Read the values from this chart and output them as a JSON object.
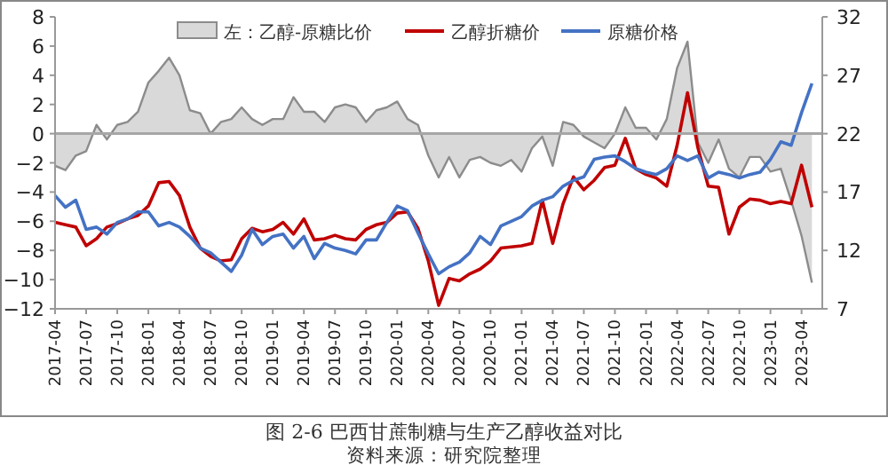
{
  "chart_data": {
    "type": "line",
    "title": "图 2-6 巴西甘蔗制糖与生产乙醇收益对比",
    "annotations": [
      "资料来源：研究院整理"
    ],
    "x": [
      "2017-04",
      "2017-05",
      "2017-06",
      "2017-07",
      "2017-08",
      "2017-09",
      "2017-10",
      "2017-11",
      "2017-12",
      "2018-01",
      "2018-02",
      "2018-03",
      "2018-04",
      "2018-05",
      "2018-06",
      "2018-07",
      "2018-08",
      "2018-09",
      "2018-10",
      "2018-11",
      "2018-12",
      "2019-01",
      "2019-02",
      "2019-03",
      "2019-04",
      "2019-05",
      "2019-06",
      "2019-07",
      "2019-08",
      "2019-09",
      "2019-10",
      "2019-11",
      "2019-12",
      "2020-01",
      "2020-02",
      "2020-03",
      "2020-04",
      "2020-05",
      "2020-06",
      "2020-07",
      "2020-08",
      "2020-09",
      "2020-10",
      "2020-11",
      "2020-12",
      "2021-01",
      "2021-02",
      "2021-03",
      "2021-04",
      "2021-05",
      "2021-06",
      "2021-07",
      "2021-08",
      "2021-09",
      "2021-10",
      "2021-11",
      "2021-12",
      "2022-01",
      "2022-02",
      "2022-03",
      "2022-04",
      "2022-05",
      "2022-06",
      "2022-07",
      "2022-08",
      "2022-09",
      "2022-10",
      "2022-11",
      "2022-12",
      "2023-01",
      "2023-02",
      "2023-03",
      "2023-04",
      "2023-05"
    ],
    "series": [
      {
        "name": "左：乙醇-原糖比价",
        "type": "area",
        "axis": "y",
        "color": "#d9d9d9",
        "values": [
          -2.2,
          -2.5,
          -1.5,
          -1.2,
          0.6,
          -0.4,
          0.6,
          0.8,
          1.5,
          3.5,
          4.3,
          5.2,
          4.0,
          1.6,
          1.4,
          0.0,
          0.8,
          1.0,
          1.8,
          1.0,
          0.6,
          1.0,
          1.0,
          2.5,
          1.5,
          1.5,
          0.8,
          1.8,
          2.0,
          1.8,
          0.8,
          1.6,
          1.8,
          2.2,
          1.0,
          0.6,
          -1.5,
          -3.0,
          -1.6,
          -3.0,
          -1.8,
          -1.6,
          -2.0,
          -2.2,
          -1.8,
          -2.6,
          -1.0,
          -0.2,
          -2.2,
          0.8,
          0.6,
          -0.2,
          -0.6,
          -1.0,
          0.0,
          1.8,
          0.4,
          0.4,
          -0.4,
          1.0,
          4.5,
          6.3,
          -0.6,
          -2.0,
          -0.4,
          -2.4,
          -3.0,
          -1.6,
          -1.6,
          -2.6,
          -2.4,
          -4.6,
          -7.0,
          -10.2
        ]
      },
      {
        "name": "乙醇折糖价",
        "axis": "y2",
        "color": "#c00000",
        "values": [
          14.4,
          14.2,
          14.0,
          12.4,
          13.0,
          14.0,
          14.3,
          14.7,
          15.0,
          15.8,
          17.8,
          17.9,
          16.7,
          14.0,
          12.2,
          11.5,
          11.1,
          11.2,
          13.0,
          13.9,
          13.6,
          13.8,
          14.4,
          13.4,
          14.7,
          12.9,
          13.0,
          13.3,
          13.0,
          12.9,
          13.8,
          14.2,
          14.4,
          15.2,
          15.3,
          13.9,
          11.1,
          7.3,
          9.6,
          9.4,
          10.0,
          10.4,
          11.1,
          12.2,
          12.3,
          12.4,
          12.6,
          16.3,
          12.6,
          16.0,
          18.3,
          17.2,
          18.0,
          19.1,
          19.3,
          21.6,
          19.0,
          18.5,
          18.2,
          17.5,
          21.0,
          25.5,
          20.8,
          17.5,
          17.4,
          13.4,
          15.7,
          16.4,
          16.3,
          16.0,
          16.2,
          16.0,
          19.3,
          15.7
        ]
      },
      {
        "name": "原糖价格",
        "axis": "y2",
        "color": "#4472c4",
        "values": [
          16.7,
          15.7,
          16.3,
          13.8,
          14.0,
          13.4,
          14.4,
          14.7,
          15.3,
          15.3,
          14.1,
          14.4,
          14.0,
          13.2,
          12.2,
          11.8,
          11.0,
          10.2,
          11.6,
          13.8,
          12.5,
          13.2,
          13.4,
          12.2,
          13.2,
          11.3,
          12.6,
          12.2,
          12.0,
          11.7,
          12.9,
          12.9,
          14.4,
          15.8,
          15.4,
          13.5,
          11.7,
          10.0,
          10.6,
          11.0,
          11.8,
          13.2,
          12.5,
          14.1,
          14.5,
          14.9,
          15.8,
          16.3,
          16.6,
          17.5,
          18.0,
          18.3,
          19.8,
          20.0,
          20.1,
          19.6,
          19.0,
          18.7,
          18.5,
          19.0,
          20.1,
          19.7,
          20.1,
          18.2,
          18.7,
          18.5,
          18.2,
          18.5,
          18.7,
          19.8,
          21.3,
          21.0,
          23.8,
          26.3
        ]
      }
    ],
    "xlim": [
      "2017-04",
      "2023-06"
    ],
    "xticks": [
      "2017-04",
      "2017-07",
      "2017-10",
      "2018-01",
      "2018-04",
      "2018-07",
      "2018-10",
      "2019-01",
      "2019-04",
      "2019-07",
      "2019-10",
      "2020-01",
      "2020-04",
      "2020-07",
      "2020-10",
      "2021-01",
      "2021-04",
      "2021-07",
      "2021-10",
      "2022-01",
      "2022-04",
      "2022-07",
      "2022-10",
      "2023-01",
      "2023-04"
    ],
    "ylim": [
      -12,
      8
    ],
    "yticks": [
      -12,
      -10,
      -8,
      -6,
      -4,
      -2,
      0,
      2,
      4,
      6,
      8
    ],
    "y2lim": [
      7,
      32
    ],
    "y2ticks": [
      7,
      12,
      17,
      22,
      27,
      32
    ],
    "ref_lines": [
      {
        "axis": "y",
        "value": 0,
        "color": "#a6a6a6"
      }
    ],
    "legend": "top",
    "grid": false,
    "marker": "none",
    "line_style": "solid"
  }
}
